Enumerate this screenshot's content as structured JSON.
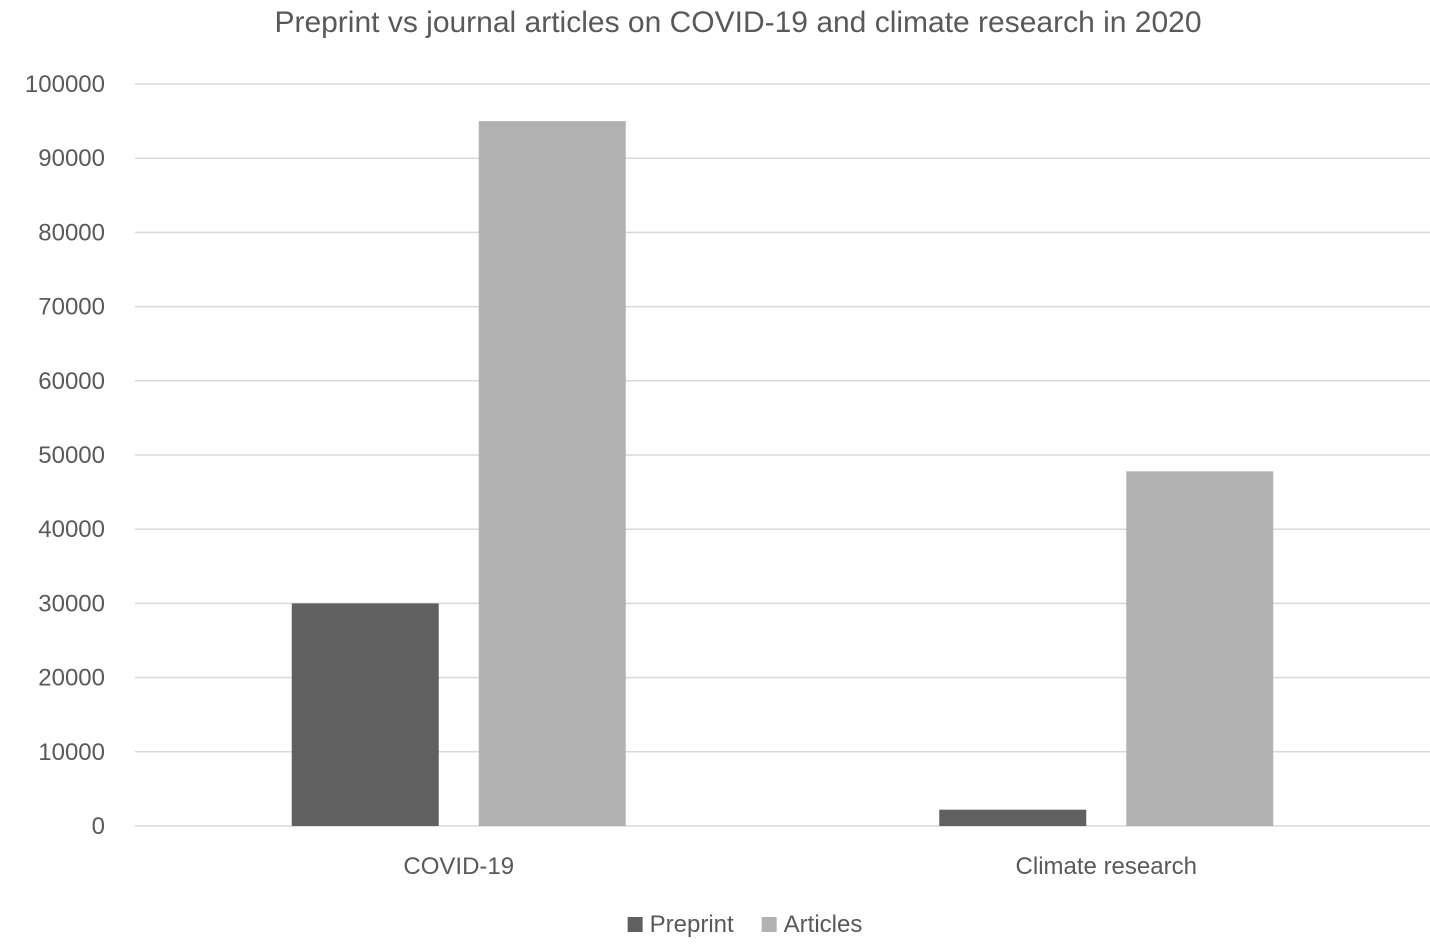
{
  "chart_data": {
    "type": "bar",
    "title": "Preprint vs journal articles on COVID-19 and climate research in 2020",
    "categories": [
      "COVID-19",
      "Climate research"
    ],
    "series": [
      {
        "name": "Preprint",
        "color": "#606060",
        "values": [
          30000,
          2200
        ]
      },
      {
        "name": "Articles",
        "color": "#b2b2b2",
        "values": [
          95000,
          47800
        ]
      }
    ],
    "ylim": [
      0,
      100000
    ],
    "yticks": [
      "0",
      "10000",
      "20000",
      "30000",
      "40000",
      "50000",
      "60000",
      "70000",
      "80000",
      "90000",
      "100000"
    ],
    "xlabel": "",
    "ylabel": "",
    "grid": true,
    "legend_position": "bottom"
  }
}
